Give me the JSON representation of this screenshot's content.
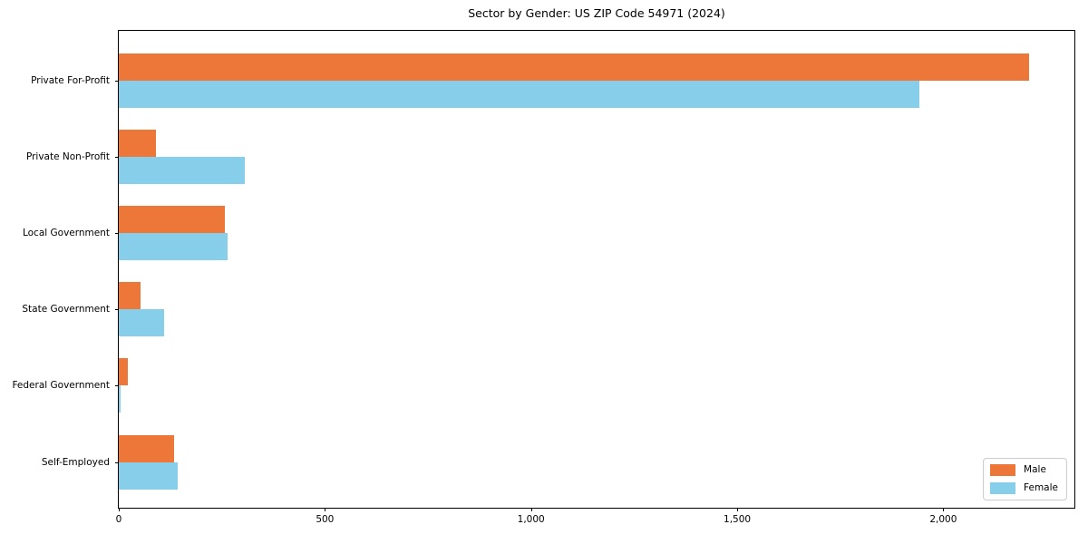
{
  "chart_data": {
    "type": "bar",
    "orientation": "horizontal",
    "title": "Sector by Gender: US ZIP Code 54971 (2024)",
    "categories": [
      "Private For-Profit",
      "Private Non-Profit",
      "Local Government",
      "State Government",
      "Federal Government",
      "Self-Employed"
    ],
    "series": [
      {
        "name": "Male",
        "color": "#ed7639",
        "values": [
          2207,
          90,
          258,
          53,
          23,
          134
        ]
      },
      {
        "name": "Female",
        "color": "#87ceeb",
        "values": [
          1943,
          305,
          264,
          110,
          3,
          142
        ]
      }
    ],
    "xlabel": "",
    "ylabel": "",
    "xlim": [
      0,
      2318
    ],
    "x_ticks": [
      0,
      500,
      1000,
      1500,
      2000
    ],
    "x_tick_labels": [
      "0",
      "500",
      "1,000",
      "1,500",
      "2,000"
    ],
    "legend_position": "lower right",
    "legend_entries": [
      "Male",
      "Female"
    ],
    "grid": false,
    "colors": {
      "male": "#ed7639",
      "female": "#87ceeb",
      "axis": "#000000",
      "legend_border": "#cccccc",
      "background": "#ffffff"
    }
  }
}
